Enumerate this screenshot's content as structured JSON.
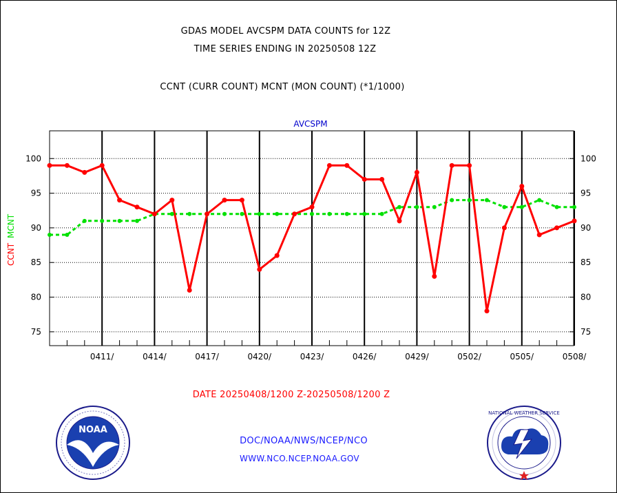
{
  "titles": {
    "line1": "GDAS MODEL AVCSPM DATA COUNTS for 12Z",
    "line2": "TIME SERIES ENDING IN 20250508 12Z",
    "line3": "CCNT (CURR COUNT) MCNT (MON COUNT) (*1/1000)"
  },
  "footer": {
    "date_range": "DATE 20250408/1200 Z-20250508/1200 Z",
    "org": "DOC/NOAA/NWS/NCEP/NCO",
    "url": "WWW.NCO.NCEP.NOAA.GOV"
  },
  "logos": {
    "left_text": "NOAA",
    "right_text": "NATIONAL WEATHER SERVICE"
  },
  "colors": {
    "ccnt": "#ff0000",
    "mcnt": "#00e000",
    "title": "#000000",
    "panel": "#0000cc",
    "date": "#ff0000",
    "footer": "#1a1aff"
  },
  "chart_data": {
    "type": "line",
    "panel_title": "AVCSPM",
    "ylabel_left": [
      "CCNT",
      "MCNT"
    ],
    "ylim": [
      73,
      104
    ],
    "yticks": [
      75,
      80,
      85,
      90,
      95,
      100
    ],
    "x_major_labels": [
      "0411/",
      "0414/",
      "0417/",
      "0420/",
      "0423/",
      "0426/",
      "0429/",
      "0502/",
      "0505/",
      "0508/"
    ],
    "x": [
      "0408",
      "0409",
      "0410",
      "0411",
      "0412",
      "0413",
      "0414",
      "0415",
      "0416",
      "0417",
      "0418",
      "0419",
      "0420",
      "0421",
      "0422",
      "0423",
      "0424",
      "0425",
      "0426",
      "0427",
      "0428",
      "0429",
      "0430",
      "0501",
      "0502",
      "0503",
      "0504",
      "0505",
      "0506",
      "0507",
      "0508"
    ],
    "grid": true,
    "series": [
      {
        "name": "CCNT",
        "values": [
          99,
          99,
          98,
          99,
          94,
          93,
          92,
          94,
          81,
          92,
          94,
          94,
          84,
          86,
          92,
          93,
          99,
          99,
          97,
          97,
          91,
          98,
          83,
          99,
          99,
          78,
          90,
          96,
          89,
          90,
          91
        ]
      },
      {
        "name": "MCNT",
        "values": [
          89,
          89,
          91,
          91,
          91,
          91,
          92,
          92,
          92,
          92,
          92,
          92,
          92,
          92,
          92,
          92,
          92,
          92,
          92,
          92,
          93,
          93,
          93,
          94,
          94,
          94,
          93,
          93,
          94,
          93,
          93
        ]
      }
    ]
  }
}
